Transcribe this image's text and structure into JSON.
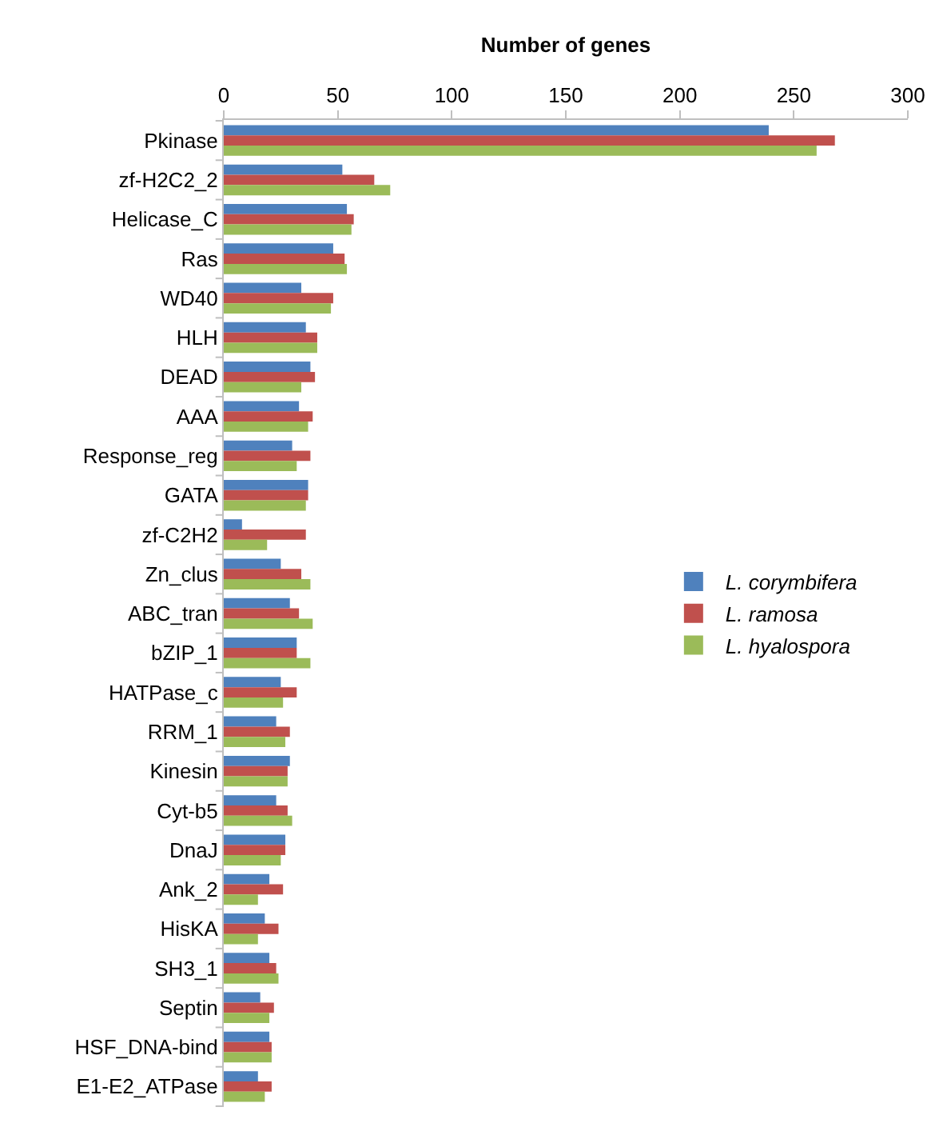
{
  "chart_data": {
    "type": "bar",
    "orientation": "horizontal",
    "xlabel": "Number of genes",
    "xlim": [
      0,
      300
    ],
    "xticks": [
      0,
      50,
      100,
      150,
      200,
      250,
      300
    ],
    "legend": "right",
    "categories": [
      "Pkinase",
      "zf-H2C2_2",
      "Helicase_C",
      "Ras",
      "WD40",
      "HLH",
      "DEAD",
      "AAA",
      "Response_reg",
      "GATA",
      "zf-C2H2",
      "Zn_clus",
      "ABC_tran",
      "bZIP_1",
      "HATPase_c",
      "RRM_1",
      "Kinesin",
      "Cyt-b5",
      "DnaJ",
      "Ank_2",
      "HisKA",
      "SH3_1",
      "Septin",
      "HSF_DNA-bind",
      "E1-E2_ATPase"
    ],
    "series": [
      {
        "name": "L. corymbifera",
        "color": "#4f81bd",
        "values": [
          239,
          52,
          54,
          48,
          34,
          36,
          38,
          33,
          30,
          37,
          8,
          25,
          29,
          32,
          25,
          23,
          29,
          23,
          27,
          20,
          18,
          20,
          16,
          20,
          15
        ]
      },
      {
        "name": "L. ramosa",
        "color": "#c0504d",
        "values": [
          268,
          66,
          57,
          53,
          48,
          41,
          40,
          39,
          38,
          37,
          36,
          34,
          33,
          32,
          32,
          29,
          28,
          28,
          27,
          26,
          24,
          23,
          22,
          21,
          21
        ]
      },
      {
        "name": "L. hyalospora",
        "color": "#9bbb59",
        "values": [
          260,
          73,
          56,
          54,
          47,
          41,
          34,
          37,
          32,
          36,
          19,
          38,
          39,
          38,
          26,
          27,
          28,
          30,
          25,
          15,
          15,
          24,
          20,
          21,
          18
        ]
      }
    ]
  }
}
